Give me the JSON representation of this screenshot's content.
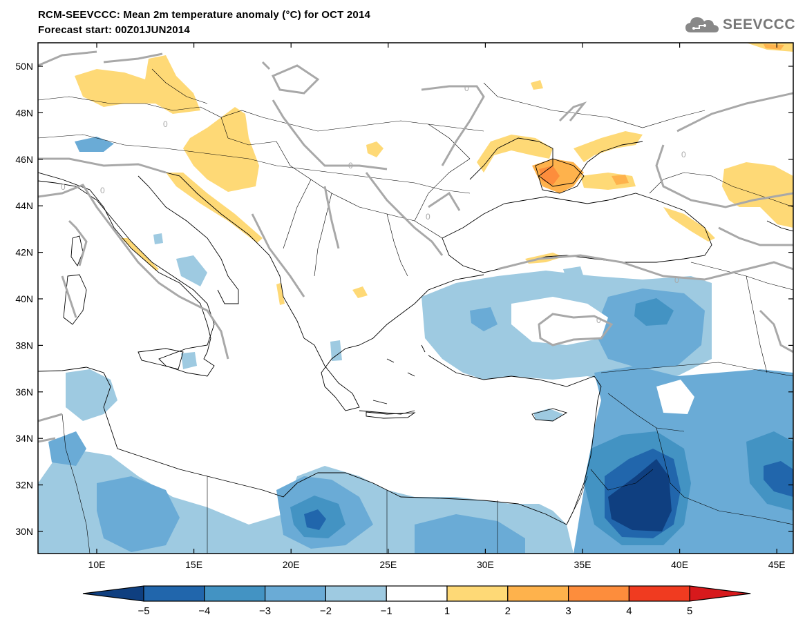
{
  "header": {
    "title_line1": "RCM-SEEVCCC: Mean 2m temperature anomaly (°C) for OCT 2014",
    "title_line2": "Forecast start: 00Z01JUN2014"
  },
  "logo": {
    "text": "SEEVCCC",
    "icon": "cloud-icon"
  },
  "map": {
    "lat_labels": [
      "50N",
      "48N",
      "46N",
      "44N",
      "42N",
      "40N",
      "38N",
      "36N",
      "34N",
      "32N",
      "30N"
    ],
    "lon_labels": [
      "10E",
      "15E",
      "20E",
      "25E",
      "30E",
      "35E",
      "40E",
      "45E"
    ],
    "contour_label": "0",
    "ocean_color": "#ffffff",
    "border_color": "#000000",
    "contour_color": "#a8a8a8"
  },
  "colorbar": {
    "tick_labels": [
      "−5",
      "−4",
      "−3",
      "−2",
      "−1",
      "1",
      "2",
      "3",
      "4",
      "5"
    ],
    "colors": [
      "#0f3f80",
      "#2166ac",
      "#4393c3",
      "#6aabd6",
      "#9ecae1",
      "#ffffff",
      "#fed976",
      "#feb24c",
      "#fd8d3c",
      "#f03b20",
      "#d7191c"
    ]
  }
}
